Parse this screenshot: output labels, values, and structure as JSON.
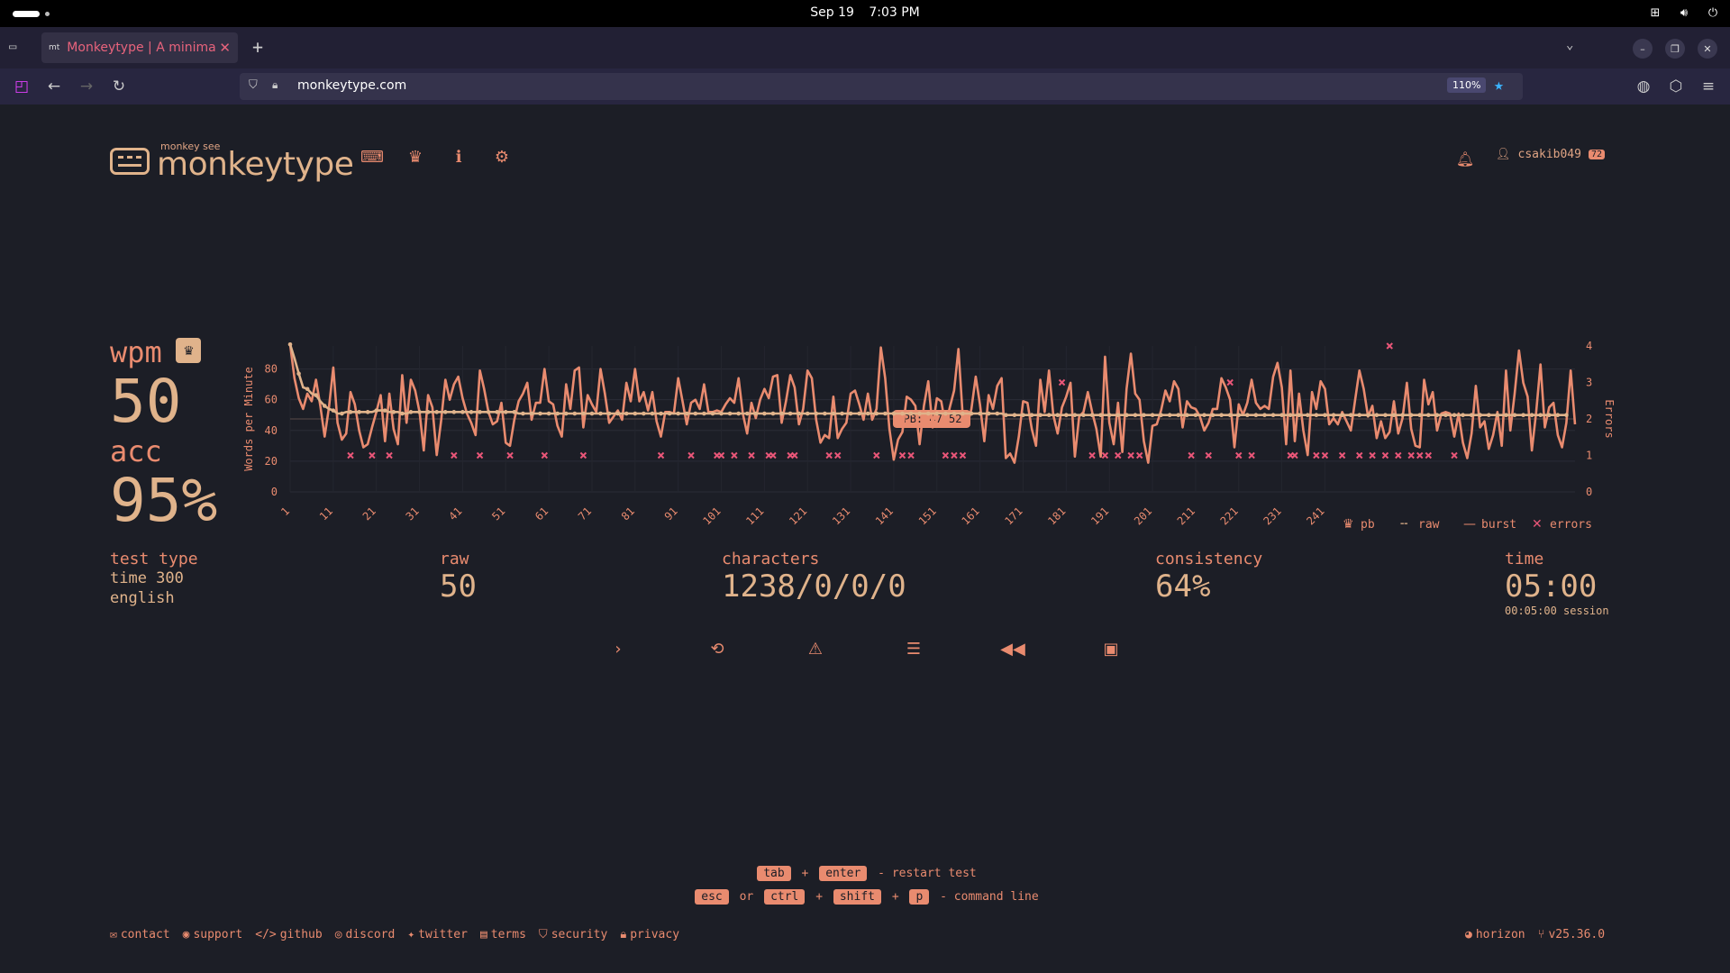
{
  "system": {
    "date": "Sep 19",
    "time": "7:03 PM"
  },
  "browser": {
    "tab_title": "Monkeytype | A minimalistic",
    "tab_favicon": "mt",
    "url": "monkeytype.com",
    "zoom": "110%"
  },
  "header": {
    "logo_top": "monkey see",
    "logo_name": "monkeytype",
    "username": "csakib049",
    "level": "72"
  },
  "stats": {
    "wpm_label": "wpm",
    "wpm": "50",
    "acc_label": "acc",
    "acc": "95%",
    "test_type_label": "test type",
    "test_type_mode": "time 300",
    "test_type_lang": "english",
    "raw_label": "raw",
    "raw": "50",
    "characters_label": "characters",
    "characters": "1238/0/0/0",
    "consistency_label": "consistency",
    "consistency": "64%",
    "time_label": "time",
    "time": "05:00",
    "session": "00:05:00 session"
  },
  "chart_data": {
    "type": "line",
    "ylabel": "Words per Minute",
    "y2label": "Errors",
    "ylim": [
      0,
      95
    ],
    "y2lim": [
      0,
      4
    ],
    "y_ticks": [
      0,
      20,
      40,
      60,
      80
    ],
    "y2_ticks": [
      0,
      1,
      2,
      3,
      4
    ],
    "x_ticks": [
      "1",
      "11",
      "21",
      "31",
      "41",
      "51",
      "61",
      "71",
      "81",
      "91",
      "101",
      "111",
      "121",
      "131",
      "141",
      "151",
      "161",
      "171",
      "181",
      "191",
      "201",
      "211",
      "221",
      "231",
      "241"
    ],
    "pb_label": "PB: 47.52",
    "pb": 47.52,
    "legend": [
      "pb",
      "raw",
      "burst",
      "errors"
    ],
    "series": [
      {
        "name": "burst",
        "x_start": 1,
        "values": [
          96,
          74,
          61,
          54,
          64,
          59,
          73,
          56,
          36,
          55,
          81,
          45,
          34,
          38,
          65,
          57,
          40,
          29,
          31,
          42,
          52,
          63,
          33,
          64,
          41,
          31,
          76,
          45,
          73,
          66,
          52,
          27,
          63,
          55,
          24,
          46,
          73,
          60,
          70,
          75,
          61,
          51,
          45,
          37,
          79,
          67,
          52,
          44,
          46,
          58,
          32,
          30,
          47,
          59,
          64,
          71,
          47,
          58,
          58,
          80,
          59,
          57,
          43,
          36,
          70,
          54,
          79,
          81,
          42,
          63,
          57,
          52,
          80,
          64,
          45,
          49,
          53,
          47,
          71,
          59,
          80,
          59,
          65,
          53,
          65,
          46,
          36,
          52,
          52,
          51,
          74,
          59,
          44,
          58,
          60,
          54,
          70,
          52,
          52,
          53,
          52,
          57,
          61,
          58,
          74,
          51,
          38,
          58,
          48,
          60,
          67,
          61,
          75,
          76,
          45,
          59,
          76,
          68,
          44,
          54,
          79,
          74,
          47,
          32,
          37,
          35,
          62,
          35,
          41,
          45,
          64,
          66,
          57,
          47,
          64,
          47,
          54,
          94,
          74,
          41,
          21,
          34,
          39,
          62,
          60,
          56,
          31,
          56,
          72,
          42,
          61,
          59,
          43,
          55,
          66,
          93,
          49,
          43,
          54,
          75,
          57,
          33,
          63,
          54,
          69,
          74,
          22,
          25,
          19,
          36,
          59,
          58,
          41,
          30,
          73,
          52,
          79,
          50,
          38,
          55,
          62,
          71,
          23,
          49,
          52,
          65,
          52,
          41,
          23,
          88,
          45,
          31,
          58,
          26,
          67,
          90,
          64,
          60,
          33,
          19,
          43,
          44,
          53,
          66,
          59,
          72,
          67,
          42,
          59,
          55,
          54,
          49,
          40,
          45,
          54,
          54,
          74,
          68,
          60,
          29,
          57,
          50,
          58,
          73,
          58,
          54,
          56,
          54,
          75,
          84,
          68,
          31,
          79,
          33,
          64,
          40,
          24,
          65,
          54,
          72,
          67,
          44,
          48,
          44,
          52,
          46,
          40,
          60,
          79,
          67,
          49,
          56,
          35,
          46,
          35,
          39,
          59,
          38,
          48,
          71,
          41,
          30,
          29,
          73,
          57,
          65,
          40,
          51,
          52,
          51,
          36,
          51,
          32,
          22,
          38,
          69,
          42,
          46,
          28,
          37,
          52,
          30,
          79,
          40,
          64,
          92,
          71,
          62,
          27,
          52,
          83,
          42,
          55,
          58,
          37,
          29,
          45,
          79,
          44
        ]
      },
      {
        "name": "raw",
        "x_start": 1,
        "values": [
          96,
          87,
          77,
          68,
          67,
          64,
          63,
          59,
          56,
          54,
          53,
          51,
          51,
          52,
          52,
          52,
          52,
          52,
          52,
          52,
          53,
          53,
          53,
          52,
          52,
          52,
          51,
          51,
          52,
          52,
          52,
          52,
          52,
          52,
          52,
          52,
          52,
          52,
          52,
          52,
          52,
          52,
          52,
          52,
          52,
          52,
          52,
          52,
          52,
          52,
          52,
          52,
          52,
          51,
          51,
          51,
          51,
          51,
          51,
          51,
          51,
          51,
          51,
          51,
          51,
          51,
          51,
          51,
          51,
          51,
          51,
          51,
          51,
          51,
          51,
          51,
          51,
          51,
          51,
          51,
          51,
          51,
          51,
          51,
          51,
          51,
          51,
          51,
          51,
          51,
          51,
          51,
          51,
          51,
          51,
          51,
          51,
          51,
          51,
          51,
          51,
          51,
          51,
          51,
          51,
          51,
          51,
          51,
          51,
          51,
          51,
          51,
          51,
          51,
          51,
          51,
          51,
          51,
          51,
          51,
          51,
          51,
          51,
          51,
          51,
          51,
          51,
          51,
          51,
          51,
          51,
          51,
          51,
          51,
          51,
          51,
          51,
          51,
          51,
          51,
          51,
          51,
          51,
          51,
          51,
          51,
          51,
          51,
          51,
          51,
          51,
          51,
          51,
          51,
          51,
          51,
          51,
          51,
          51,
          51,
          51,
          51,
          51,
          51,
          51,
          51,
          50,
          50,
          50,
          50,
          50,
          50,
          50,
          50,
          50,
          50,
          50,
          50,
          50,
          50,
          50,
          50,
          50,
          50,
          50,
          50,
          50,
          50,
          50,
          50,
          50,
          50,
          50,
          50,
          50,
          50,
          50,
          50,
          50,
          50,
          50,
          50,
          50,
          50,
          50,
          50,
          50,
          50,
          50,
          50,
          50,
          50,
          50,
          50,
          50,
          50,
          50,
          50,
          50,
          50,
          50,
          50,
          50,
          50,
          50,
          50,
          50,
          50,
          50,
          50,
          50,
          50,
          50,
          50,
          50,
          50,
          50,
          50,
          50,
          50,
          50,
          50,
          50,
          50,
          50,
          50,
          50,
          50,
          50,
          50,
          50,
          50,
          50,
          50,
          50,
          50,
          50,
          50,
          50,
          50,
          50,
          50,
          50,
          50,
          50,
          50,
          50,
          50,
          50,
          50,
          50,
          50,
          50,
          50,
          50,
          50,
          50,
          50,
          50,
          50,
          50,
          50,
          50,
          50,
          50,
          50,
          50,
          50,
          50,
          50,
          50,
          50,
          50,
          50,
          50,
          50,
          50
        ]
      },
      {
        "name": "errors",
        "x": [
          15,
          20,
          24,
          39,
          45,
          52,
          60,
          69,
          87,
          94,
          100,
          101,
          104,
          108,
          112,
          113,
          117,
          118,
          126,
          128,
          137,
          143,
          145,
          153,
          155,
          157,
          180,
          187,
          190,
          193,
          196,
          198,
          210,
          214,
          219,
          221,
          224,
          233,
          234,
          239,
          241,
          245,
          249,
          252,
          255,
          256,
          258,
          261,
          263,
          265,
          271
        ],
        "values": [
          1,
          1,
          1,
          1,
          1,
          1,
          1,
          1,
          1,
          1,
          1,
          1,
          1,
          1,
          1,
          1,
          1,
          1,
          1,
          1,
          1,
          1,
          1,
          1,
          1,
          1,
          3,
          1,
          1,
          1,
          1,
          1,
          1,
          1,
          3,
          1,
          1,
          1,
          1,
          1,
          1,
          1,
          1,
          1,
          1,
          4,
          1,
          1,
          1,
          1,
          1
        ]
      }
    ]
  },
  "actions": [
    "next-test",
    "repeat-test",
    "report",
    "words-history",
    "replay",
    "screenshot"
  ],
  "hints": {
    "tab": "tab",
    "plus1": "+",
    "enter": "enter",
    "restart": "- restart test",
    "esc": "esc",
    "or": "or",
    "ctrl": "ctrl",
    "plus2": "+",
    "shift": "shift",
    "plus3": "+",
    "p": "p",
    "cmdline": "- command line"
  },
  "footer": {
    "contact": "contact",
    "support": "support",
    "github": "github",
    "discord": "discord",
    "twitter": "twitter",
    "terms": "terms",
    "security": "security",
    "privacy": "privacy",
    "theme": "horizon",
    "version": "v25.36.0"
  },
  "colors": {
    "bg": "#1c1e26",
    "main": "#e98b6f",
    "text": "#e0b38b",
    "error": "#e95678"
  }
}
